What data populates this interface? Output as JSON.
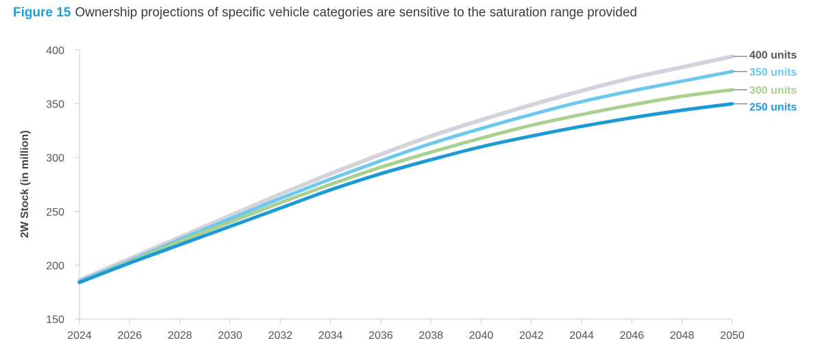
{
  "figure": {
    "number": "Figure 15",
    "caption": "Ownership projections of specific vehicle categories are sensitive to the saturation range provided"
  },
  "chart_data": {
    "type": "line",
    "title": "Figure 15 Ownership projections of specific vehicle categories are sensitive to the saturation range provided",
    "xlabel": "",
    "ylabel": "2W Stock (in million)",
    "x": [
      2024,
      2026,
      2028,
      2030,
      2032,
      2034,
      2036,
      2038,
      2040,
      2042,
      2044,
      2046,
      2048,
      2050
    ],
    "xticks": [
      "2024",
      "2026",
      "2028",
      "2030",
      "2032",
      "2034",
      "2036",
      "2038",
      "2040",
      "2042",
      "2044",
      "2046",
      "2048",
      "2050"
    ],
    "ylim": [
      150,
      400
    ],
    "yticks": [
      "150",
      "200",
      "250",
      "300",
      "350",
      "400"
    ],
    "grid": false,
    "legend": "right-end labels",
    "series": [
      {
        "name": "400 units",
        "color": "#d3d3dc",
        "values": [
          186,
          206,
          226,
          246,
          266,
          285,
          303,
          320,
          335,
          349,
          362,
          374,
          384,
          394
        ]
      },
      {
        "name": "350 units",
        "color": "#6cc8ec",
        "values": [
          185,
          204,
          224,
          243,
          262,
          280,
          297,
          313,
          327,
          340,
          352,
          362,
          371,
          380
        ]
      },
      {
        "name": "300 units",
        "color": "#a9d08e",
        "values": [
          184,
          203,
          222,
          240,
          258,
          275,
          291,
          305,
          318,
          330,
          340,
          349,
          357,
          363
        ]
      },
      {
        "name": "250 units",
        "color": "#1b9ad6",
        "values": [
          184,
          202,
          219,
          236,
          253,
          270,
          285,
          298,
          310,
          320,
          329,
          337,
          344,
          350
        ]
      }
    ]
  }
}
